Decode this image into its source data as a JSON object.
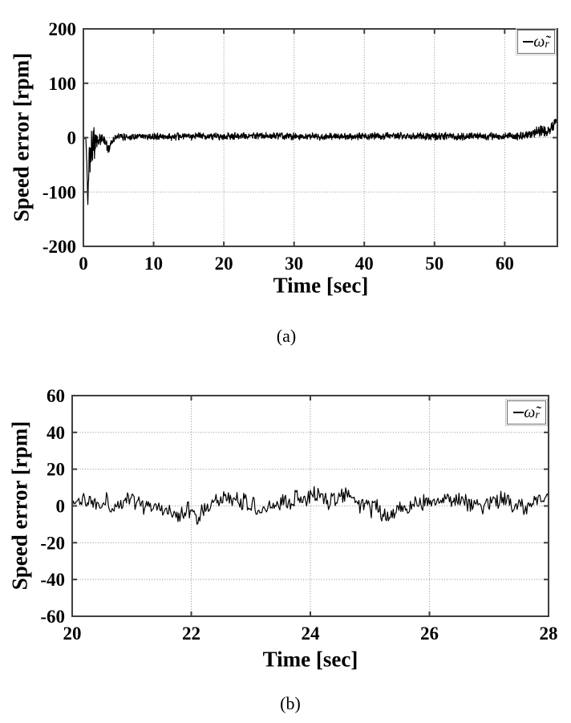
{
  "captions": {
    "a": "(a)",
    "b": "(b)"
  },
  "legend": {
    "symbol": "ω̃",
    "subscript": "r"
  },
  "colors": {
    "trace": "#000000",
    "grid": "#8c8c8c",
    "axis": "#3f3f3f",
    "text": "#000000",
    "legend_border": "#6e6e6e",
    "background": "#ffffff"
  },
  "chart_data": [
    {
      "id": "a",
      "type": "line",
      "title": "",
      "xlabel": "Time [sec]",
      "ylabel": "Speed error [rpm]",
      "xlim": [
        0,
        67.5
      ],
      "ylim": [
        -200,
        200
      ],
      "xticks": [
        0,
        10,
        20,
        30,
        40,
        50,
        60
      ],
      "yticks": [
        -200,
        -100,
        0,
        100,
        200
      ],
      "grid": true,
      "legend_position": "top-right",
      "series": [
        {
          "name": "speed-error",
          "legend": "ω̃r",
          "color": "#000000",
          "dt": 0.035,
          "seed": 42,
          "profile": [
            [
              0,
              0,
              1
            ],
            [
              0.35,
              -2,
              3
            ],
            [
              0.5,
              -50,
              10
            ],
            [
              0.62,
              -123,
              5
            ],
            [
              0.75,
              -60,
              25
            ],
            [
              0.9,
              -15,
              50
            ],
            [
              1.1,
              -18,
              45
            ],
            [
              1.4,
              -12,
              35
            ],
            [
              1.7,
              -10,
              25
            ],
            [
              2.0,
              -8,
              16
            ],
            [
              2.4,
              -5,
              12
            ],
            [
              2.9,
              -3,
              10
            ],
            [
              3.3,
              -12,
              12
            ],
            [
              3.6,
              -20,
              12
            ],
            [
              3.9,
              -10,
              10
            ],
            [
              4.3,
              -2,
              8
            ],
            [
              5,
              1,
              7
            ],
            [
              8,
              2,
              7
            ],
            [
              15,
              2,
              7
            ],
            [
              25,
              3,
              7
            ],
            [
              35,
              2,
              7
            ],
            [
              45,
              3,
              7
            ],
            [
              55,
              2,
              7
            ],
            [
              60,
              3,
              7
            ],
            [
              62,
              3,
              8
            ],
            [
              63.5,
              5,
              9
            ],
            [
              64.5,
              10,
              11
            ],
            [
              65.3,
              14,
              11
            ],
            [
              65.9,
              10,
              10
            ],
            [
              66.5,
              16,
              11
            ],
            [
              67.1,
              25,
              10
            ],
            [
              67.5,
              37,
              4
            ]
          ]
        }
      ]
    },
    {
      "id": "b",
      "type": "line",
      "title": "",
      "xlabel": "Time [sec]",
      "ylabel": "Speed error [rpm]",
      "xlim": [
        20,
        28
      ],
      "ylim": [
        -60,
        60
      ],
      "xticks": [
        20,
        22,
        24,
        26,
        28
      ],
      "yticks": [
        -60,
        -40,
        -20,
        0,
        20,
        40,
        60
      ],
      "grid": true,
      "legend_position": "top-right",
      "series": [
        {
          "name": "speed-error",
          "legend": "ω̃r",
          "color": "#000000",
          "dt": 0.016,
          "seed": 1337,
          "profile": [
            [
              20,
              2,
              6
            ],
            [
              20.3,
              4,
              6
            ],
            [
              20.7,
              1,
              6
            ],
            [
              21.0,
              3,
              6
            ],
            [
              21.35,
              0,
              6
            ],
            [
              21.6,
              -3,
              5
            ],
            [
              21.8,
              -5,
              5
            ],
            [
              21.95,
              -2,
              6
            ],
            [
              22.1,
              -6,
              5
            ],
            [
              22.3,
              1,
              6
            ],
            [
              22.6,
              3,
              6
            ],
            [
              22.9,
              1,
              6
            ],
            [
              23.2,
              -1,
              6
            ],
            [
              23.5,
              2,
              6
            ],
            [
              23.8,
              4,
              6
            ],
            [
              24.1,
              6,
              7
            ],
            [
              24.35,
              4,
              7
            ],
            [
              24.6,
              6,
              7
            ],
            [
              24.85,
              1,
              6
            ],
            [
              25.1,
              -1,
              6
            ],
            [
              25.35,
              -5,
              5
            ],
            [
              25.6,
              -2,
              6
            ],
            [
              25.9,
              2,
              6
            ],
            [
              26.3,
              3,
              6
            ],
            [
              26.7,
              1,
              6
            ],
            [
              27.1,
              3,
              6
            ],
            [
              27.5,
              1,
              6
            ],
            [
              27.8,
              2,
              6
            ],
            [
              28,
              2,
              5
            ]
          ]
        }
      ]
    }
  ]
}
